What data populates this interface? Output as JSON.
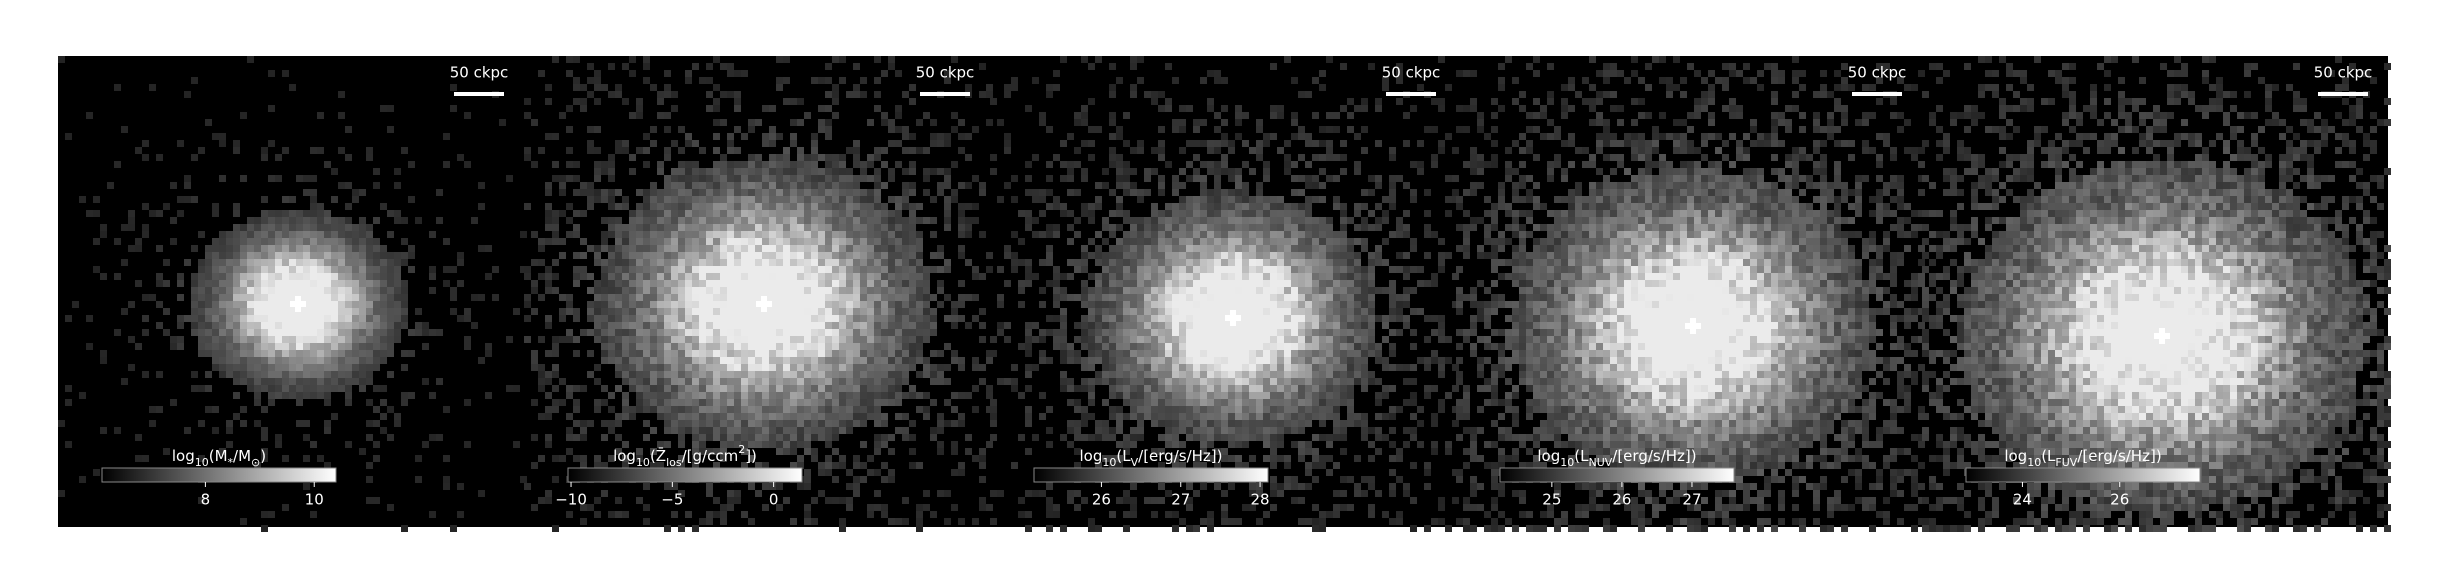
{
  "chart_data": [
    {
      "type": "image",
      "scale_bar": "50 ckpc",
      "colorbar": {
        "label": [
          {
            "text": "log"
          },
          {
            "text": "10",
            "sub": true
          },
          {
            "text": "(M"
          },
          {
            "text": "*",
            "sub": true
          },
          {
            "text": "/M"
          },
          {
            "text": "⊙",
            "sub": true
          },
          {
            "text": ")"
          }
        ],
        "clim": [
          6.1,
          10.4
        ],
        "ticks": [
          8,
          10
        ],
        "colors": [
          "#000000",
          "#ffffff"
        ]
      }
    },
    {
      "type": "image",
      "scale_bar": "50 ckpc",
      "colorbar": {
        "label": [
          {
            "text": "log"
          },
          {
            "text": "10",
            "sub": true
          },
          {
            "text": "(Z̄"
          },
          {
            "text": "los",
            "sub": true
          },
          {
            "text": "/[g/ccm"
          },
          {
            "text": "2",
            "sup": true
          },
          {
            "text": "])"
          }
        ],
        "clim": [
          -10.15,
          1.4
        ],
        "ticks": [
          {
            "value": -10,
            "label": "−10"
          },
          {
            "value": -5,
            "label": "−5"
          },
          0
        ],
        "colors": [
          "#000000",
          "#ffffff"
        ]
      }
    },
    {
      "type": "image",
      "scale_bar": "50 ckpc",
      "colorbar": {
        "label": [
          {
            "text": "log"
          },
          {
            "text": "10",
            "sub": true
          },
          {
            "text": "(L"
          },
          {
            "text": "V",
            "sub": true
          },
          {
            "text": "/[erg/s/Hz])"
          }
        ],
        "clim": [
          25.15,
          28.1
        ],
        "ticks": [
          26,
          27,
          28
        ],
        "colors": [
          "#000000",
          "#ffffff"
        ]
      }
    },
    {
      "type": "image",
      "scale_bar": "50 ckpc",
      "colorbar": {
        "label": [
          {
            "text": "log"
          },
          {
            "text": "10",
            "sub": true
          },
          {
            "text": "(L"
          },
          {
            "text": "NUV",
            "sub": true
          },
          {
            "text": "/[erg/s/Hz])"
          }
        ],
        "clim": [
          24.26,
          27.6
        ],
        "ticks": [
          25,
          26,
          27
        ],
        "colors": [
          "#000000",
          "#ffffff"
        ]
      }
    },
    {
      "type": "image",
      "scale_bar": "50 ckpc",
      "colorbar": {
        "label": [
          {
            "text": "log"
          },
          {
            "text": "10",
            "sub": true
          },
          {
            "text": "(L"
          },
          {
            "text": "FUV",
            "sub": true
          },
          {
            "text": "/[erg/s/Hz])"
          }
        ],
        "clim": [
          22.84,
          27.65
        ],
        "ticks": [
          24,
          26
        ],
        "colors": [
          "#000000",
          "#ffffff"
        ]
      }
    }
  ]
}
